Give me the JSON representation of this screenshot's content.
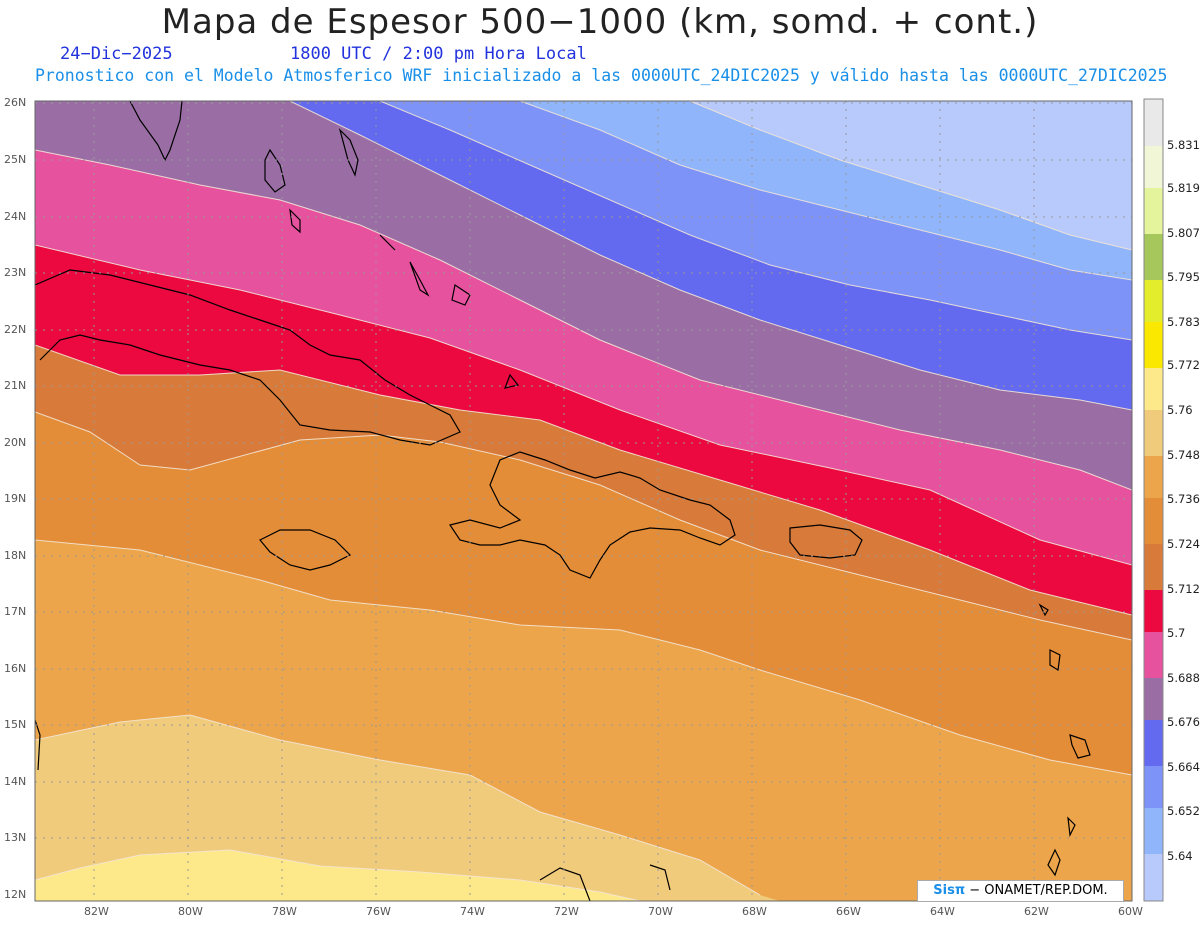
{
  "header": {
    "title": "Mapa de Espesor 500−1000 (km, somd. + cont.)",
    "date": "24−Dic−2025",
    "valid_time": "1800 UTC / 2:00 pm Hora Local",
    "forecast_note": "Pronostico con el Modelo Atmosferico WRF inicializado a las 0000UTC_24DIC2025 y válido hasta las  0000UTC_27DIC2025"
  },
  "map": {
    "lat_labels": [
      "26N",
      "25N",
      "24N",
      "23N",
      "22N",
      "21N",
      "20N",
      "19N",
      "18N",
      "17N",
      "16N",
      "15N",
      "14N",
      "13N",
      "12N"
    ],
    "lon_labels": [
      "82W",
      "80W",
      "78W",
      "76W",
      "74W",
      "72W",
      "70W",
      "68W",
      "66W",
      "64W",
      "62W",
      "60W"
    ],
    "grid": true,
    "contour_line_color": "#f3e6d6",
    "coastline_color": "#000000"
  },
  "colorbar": {
    "labels": [
      "5.831",
      "5.819",
      "5.807",
      "5.795",
      "5.783",
      "5.772",
      "5.76",
      "5.748",
      "5.736",
      "5.724",
      "5.712",
      "5.7",
      "5.688",
      "5.676",
      "5.664",
      "5.652",
      "5.64"
    ],
    "colors": [
      "#e9e9e9",
      "#f1f6d6",
      "#e3f49c",
      "#a5c75c",
      "#e4ed2c",
      "#fbe800",
      "#fde989",
      "#f1cb7c",
      "#eca54a",
      "#e48d38",
      "#d87b3a",
      "#eb0940",
      "#e7529f",
      "#9a6ea5",
      "#636aef",
      "#7e93f8",
      "#90b5fb",
      "#b8c9fc"
    ]
  },
  "credit": {
    "sis": "Sisπ",
    "org": " − ONAMET/REP.DOM."
  }
}
